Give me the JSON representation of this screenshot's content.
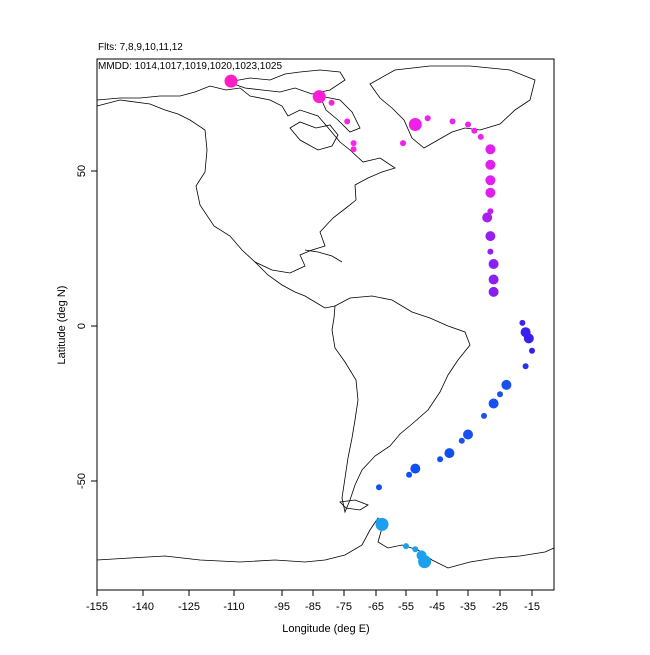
{
  "header": {
    "flights_label": "Flts: 7,8,9,10,11,12",
    "dates_label": "MMDD: 1014,1017,1019,1020,1023,1025"
  },
  "chart_data": {
    "type": "scatter",
    "xlabel": "Longitude (deg E)",
    "ylabel": "Latitude (deg N)",
    "xlim": [
      -155,
      -10
    ],
    "ylim": [
      -85,
      83
    ],
    "x_ticks": [
      -155,
      -140,
      -125,
      -110,
      -95,
      -85,
      -75,
      -65,
      -55,
      -45,
      -35,
      -25,
      -15
    ],
    "x_tick_labels": [
      "-155",
      "-140",
      "-125",
      "-110",
      "-95",
      "-85",
      "-75",
      "-65",
      "-55",
      "-45",
      "-35",
      "-25",
      "-15"
    ],
    "y_ticks": [
      -50,
      0,
      50
    ],
    "y_tick_labels": [
      "-50",
      "0",
      "50"
    ],
    "grid": false,
    "points": [
      {
        "lon": -111,
        "lat": 79,
        "size": "large",
        "color": "#ff1fc0"
      },
      {
        "lon": -83,
        "lat": 74,
        "size": "large",
        "color": "#ff1fd4"
      },
      {
        "lon": -79,
        "lat": 72,
        "size": "small",
        "color": "#ff1fd4"
      },
      {
        "lon": -74,
        "lat": 66,
        "size": "small",
        "color": "#ff22e0"
      },
      {
        "lon": -72,
        "lat": 59,
        "size": "small",
        "color": "#ff22e8"
      },
      {
        "lon": -72,
        "lat": 57,
        "size": "small",
        "color": "#ff22e8"
      },
      {
        "lon": -52,
        "lat": 65,
        "size": "large",
        "color": "#f020e8"
      },
      {
        "lon": -48,
        "lat": 67,
        "size": "small",
        "color": "#f020e8"
      },
      {
        "lon": -56,
        "lat": 59,
        "size": "small",
        "color": "#f020e8"
      },
      {
        "lon": -40,
        "lat": 66,
        "size": "small",
        "color": "#ee22ee"
      },
      {
        "lon": -35,
        "lat": 65,
        "size": "small",
        "color": "#ee22ee"
      },
      {
        "lon": -33,
        "lat": 63,
        "size": "small",
        "color": "#ee22ee"
      },
      {
        "lon": -31,
        "lat": 61,
        "size": "small",
        "color": "#ee22ee"
      },
      {
        "lon": -28,
        "lat": 57,
        "size": "medium",
        "color": "#e020f0"
      },
      {
        "lon": -28,
        "lat": 52,
        "size": "medium",
        "color": "#e020f0"
      },
      {
        "lon": -28,
        "lat": 47,
        "size": "medium",
        "color": "#e020f0"
      },
      {
        "lon": -28,
        "lat": 43,
        "size": "medium",
        "color": "#e020f0"
      },
      {
        "lon": -28,
        "lat": 37,
        "size": "small",
        "color": "#c020f0"
      },
      {
        "lon": -29,
        "lat": 35,
        "size": "medium",
        "color": "#a820f0"
      },
      {
        "lon": -28,
        "lat": 29,
        "size": "medium",
        "color": "#9520f0"
      },
      {
        "lon": -28,
        "lat": 24,
        "size": "small",
        "color": "#9520f0"
      },
      {
        "lon": -27,
        "lat": 20,
        "size": "medium",
        "color": "#8820f0"
      },
      {
        "lon": -27,
        "lat": 15,
        "size": "medium",
        "color": "#8820f0"
      },
      {
        "lon": -27,
        "lat": 11,
        "size": "medium",
        "color": "#8420f0"
      },
      {
        "lon": -18,
        "lat": 1,
        "size": "small",
        "color": "#4420f0"
      },
      {
        "lon": -17,
        "lat": -2,
        "size": "medium",
        "color": "#3a20f0"
      },
      {
        "lon": -16,
        "lat": -4,
        "size": "medium",
        "color": "#3520f0"
      },
      {
        "lon": -15,
        "lat": -8,
        "size": "small",
        "color": "#3020f0"
      },
      {
        "lon": -17,
        "lat": -13,
        "size": "small",
        "color": "#2a30f0"
      },
      {
        "lon": -23,
        "lat": -19,
        "size": "medium",
        "color": "#1a50f0"
      },
      {
        "lon": -25,
        "lat": -22,
        "size": "small",
        "color": "#1a50f0"
      },
      {
        "lon": -27,
        "lat": -25,
        "size": "medium",
        "color": "#1a50f0"
      },
      {
        "lon": -30,
        "lat": -29,
        "size": "small",
        "color": "#1a50f0"
      },
      {
        "lon": -35,
        "lat": -35,
        "size": "medium",
        "color": "#1a50f0"
      },
      {
        "lon": -37,
        "lat": -37,
        "size": "small",
        "color": "#1a50f0"
      },
      {
        "lon": -41,
        "lat": -41,
        "size": "medium",
        "color": "#1050f0"
      },
      {
        "lon": -44,
        "lat": -43,
        "size": "small",
        "color": "#1050f0"
      },
      {
        "lon": -52,
        "lat": -46,
        "size": "medium",
        "color": "#1050f0"
      },
      {
        "lon": -54,
        "lat": -48,
        "size": "small",
        "color": "#1050f0"
      },
      {
        "lon": -64,
        "lat": -52,
        "size": "small",
        "color": "#1050f0"
      },
      {
        "lon": -64,
        "lat": -63,
        "size": "small",
        "color": "#1aa0ee"
      },
      {
        "lon": -63,
        "lat": -64,
        "size": "large",
        "color": "#1aa0ee"
      },
      {
        "lon": -55,
        "lat": -71,
        "size": "small",
        "color": "#1aa0ee"
      },
      {
        "lon": -52,
        "lat": -72,
        "size": "small",
        "color": "#1aa0ee"
      },
      {
        "lon": -50,
        "lat": -74,
        "size": "medium",
        "color": "#1aa0ee"
      },
      {
        "lon": -49,
        "lat": -76,
        "size": "large",
        "color": "#1aa0ee"
      }
    ]
  }
}
